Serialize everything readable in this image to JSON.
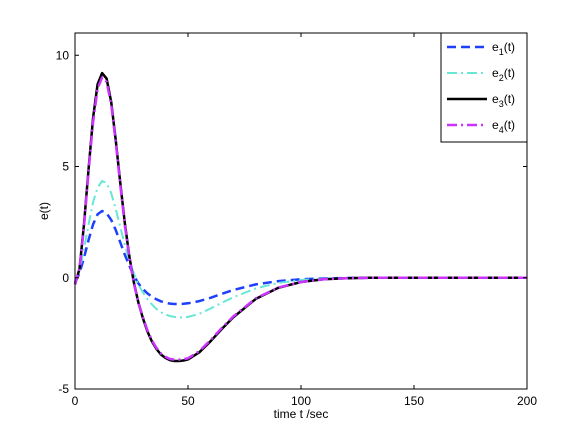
{
  "chart_data": {
    "type": "line",
    "title": "",
    "xlabel": "time t /sec",
    "ylabel": "e(t)",
    "xlim": [
      0,
      200
    ],
    "ylim": [
      -5,
      11
    ],
    "xticks": [
      0,
      50,
      100,
      150,
      200
    ],
    "yticks": [
      -5,
      0,
      5,
      10
    ],
    "grid": false,
    "legend_position": "top-right",
    "series": [
      {
        "name": "e1(t)",
        "label_base": "e",
        "label_sub": "1",
        "label_suffix": "(t)",
        "color": "#1f3fff",
        "style": "dashed",
        "width": 2.5,
        "x": [
          0,
          2,
          4,
          6,
          8,
          10,
          12,
          14,
          16,
          18,
          20,
          22,
          24,
          26,
          28,
          30,
          32,
          34,
          36,
          38,
          40,
          42,
          44,
          46,
          48,
          50,
          55,
          60,
          65,
          70,
          80,
          90,
          100,
          110,
          120,
          130,
          140,
          150,
          160,
          170,
          180,
          190,
          200
        ],
        "y": [
          -0.2,
          0.2,
          0.9,
          1.7,
          2.4,
          2.85,
          3.0,
          2.9,
          2.6,
          2.15,
          1.6,
          1.05,
          0.55,
          0.1,
          -0.25,
          -0.5,
          -0.7,
          -0.85,
          -0.97,
          -1.06,
          -1.12,
          -1.16,
          -1.18,
          -1.18,
          -1.17,
          -1.15,
          -1.05,
          -0.9,
          -0.72,
          -0.55,
          -0.3,
          -0.15,
          -0.07,
          -0.03,
          -0.01,
          0,
          0,
          0,
          0,
          0,
          0,
          0,
          0
        ]
      },
      {
        "name": "e2(t)",
        "label_base": "e",
        "label_sub": "2",
        "label_suffix": "(t)",
        "color": "#66e8d4",
        "style": "dashdot",
        "width": 2,
        "x": [
          0,
          2,
          4,
          6,
          8,
          10,
          12,
          14,
          16,
          18,
          20,
          22,
          24,
          26,
          28,
          30,
          32,
          34,
          36,
          38,
          40,
          42,
          44,
          46,
          48,
          50,
          55,
          60,
          65,
          70,
          80,
          90,
          100,
          110,
          120,
          130,
          140,
          150,
          160,
          170,
          180,
          190,
          200
        ],
        "y": [
          -0.25,
          0.3,
          1.3,
          2.4,
          3.4,
          4.05,
          4.35,
          4.25,
          3.8,
          3.1,
          2.3,
          1.5,
          0.8,
          0.2,
          -0.3,
          -0.65,
          -0.95,
          -1.2,
          -1.4,
          -1.55,
          -1.65,
          -1.72,
          -1.76,
          -1.78,
          -1.78,
          -1.76,
          -1.62,
          -1.38,
          -1.12,
          -0.88,
          -0.48,
          -0.23,
          -0.1,
          -0.04,
          -0.01,
          0,
          0,
          0,
          0,
          0,
          0,
          0,
          0
        ]
      },
      {
        "name": "e3(t)",
        "label_base": "e",
        "label_sub": "3",
        "label_suffix": "(t)",
        "color": "#000000",
        "style": "solid",
        "width": 2.5,
        "x": [
          0,
          2,
          4,
          6,
          8,
          10,
          12,
          14,
          16,
          18,
          20,
          22,
          24,
          26,
          28,
          30,
          32,
          34,
          36,
          38,
          40,
          42,
          44,
          46,
          48,
          50,
          55,
          60,
          65,
          70,
          80,
          90,
          100,
          110,
          120,
          130,
          140,
          150,
          160,
          170,
          180,
          190,
          200
        ],
        "y": [
          -0.3,
          0.4,
          2.4,
          4.9,
          7.2,
          8.7,
          9.2,
          8.95,
          7.9,
          6.2,
          4.3,
          2.5,
          1.0,
          -0.2,
          -1.1,
          -1.8,
          -2.4,
          -2.85,
          -3.2,
          -3.45,
          -3.6,
          -3.7,
          -3.74,
          -3.74,
          -3.72,
          -3.67,
          -3.35,
          -2.85,
          -2.3,
          -1.78,
          -0.95,
          -0.45,
          -0.19,
          -0.07,
          -0.02,
          0,
          0,
          0,
          0,
          0,
          0,
          0,
          0
        ]
      },
      {
        "name": "e4(t)",
        "label_base": "e",
        "label_sub": "4",
        "label_suffix": "(t)",
        "color": "#cc33ff",
        "style": "dashdot",
        "width": 2.5,
        "x": [
          0,
          2,
          4,
          6,
          8,
          10,
          12,
          14,
          16,
          18,
          20,
          22,
          24,
          26,
          28,
          30,
          32,
          34,
          36,
          38,
          40,
          42,
          44,
          46,
          48,
          50,
          55,
          60,
          65,
          70,
          80,
          90,
          100,
          110,
          120,
          130,
          140,
          150,
          160,
          170,
          180,
          190,
          200
        ],
        "y": [
          -0.3,
          0.4,
          2.3,
          4.8,
          7.0,
          8.5,
          9.0,
          8.8,
          7.8,
          6.1,
          4.2,
          2.4,
          0.95,
          -0.25,
          -1.1,
          -1.75,
          -2.35,
          -2.8,
          -3.15,
          -3.4,
          -3.55,
          -3.65,
          -3.68,
          -3.68,
          -3.66,
          -3.62,
          -3.3,
          -2.8,
          -2.25,
          -1.74,
          -0.93,
          -0.44,
          -0.19,
          -0.07,
          -0.02,
          0,
          0,
          0,
          0,
          0,
          0,
          0,
          0
        ]
      }
    ]
  }
}
